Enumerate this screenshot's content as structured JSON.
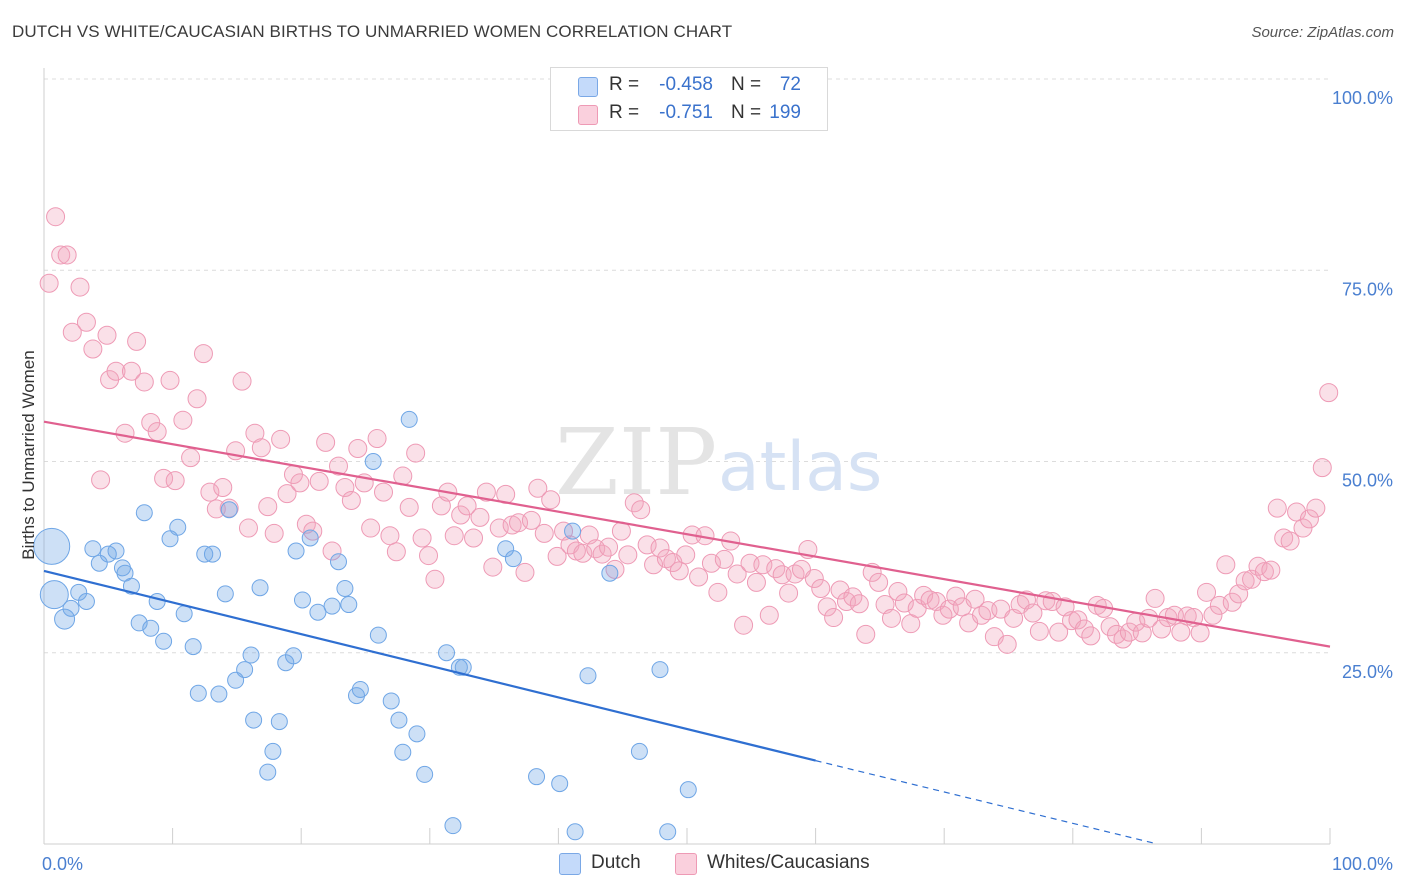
{
  "header": {
    "title": "DUTCH VS WHITE/CAUCASIAN BIRTHS TO UNMARRIED WOMEN CORRELATION CHART",
    "source": "Source: ZipAtlas.com"
  },
  "watermark": {
    "zip": "ZIP",
    "atlas": "atlas"
  },
  "legend": {
    "r_label": "R =",
    "n_label": "N =",
    "rows": [
      {
        "r": "-0.458",
        "n": "72",
        "color": "#a9c8f0"
      },
      {
        "r": "-0.751",
        "n": "199",
        "color": "#f5bccd"
      }
    ]
  },
  "bottom_legend": {
    "dutch": "Dutch",
    "white": "Whites/Caucasians"
  },
  "chart_data": {
    "type": "scatter",
    "title": "DUTCH VS WHITE/CAUCASIAN BIRTHS TO UNMARRIED WOMEN CORRELATION CHART",
    "ylabel": "Births to Unmarried Women",
    "xlabel": "",
    "x_tick_labels": [
      "0.0%",
      "100.0%"
    ],
    "y_tick_labels": [
      "100.0%",
      "75.0%",
      "50.0%",
      "25.0%"
    ],
    "xlim": [
      0,
      100
    ],
    "ylim": [
      0,
      100
    ],
    "grid": true,
    "legend_position": "top-center",
    "series": [
      {
        "name": "Dutch",
        "color": "#6fa6e6",
        "trend": {
          "x": [
            0,
            60
          ],
          "y": [
            35.7,
            10.9
          ],
          "dashed_to": [
            100,
            -5.5
          ],
          "color": "#2f6fd1"
        },
        "points": [
          [
            0.6,
            38.9,
            18
          ],
          [
            0.8,
            32.6,
            14
          ],
          [
            1.6,
            29.4,
            10
          ],
          [
            2.1,
            30.8,
            8
          ],
          [
            2.7,
            32.9,
            8
          ],
          [
            3.3,
            31.7,
            8
          ],
          [
            3.8,
            38.6,
            8
          ],
          [
            4.3,
            36.7,
            8
          ],
          [
            5.0,
            37.9,
            8
          ],
          [
            5.6,
            38.3,
            8
          ],
          [
            6.1,
            36.1,
            8
          ],
          [
            6.3,
            35.4,
            8
          ],
          [
            6.8,
            33.7,
            8
          ],
          [
            7.4,
            28.9,
            8
          ],
          [
            7.8,
            43.3,
            8
          ],
          [
            8.3,
            28.2,
            8
          ],
          [
            8.8,
            31.7,
            8
          ],
          [
            9.3,
            26.5,
            8
          ],
          [
            9.8,
            39.9,
            8
          ],
          [
            10.4,
            41.4,
            8
          ],
          [
            10.9,
            30.1,
            8
          ],
          [
            11.6,
            25.8,
            8
          ],
          [
            12.0,
            19.7,
            8
          ],
          [
            12.5,
            37.9,
            8
          ],
          [
            13.1,
            37.9,
            8
          ],
          [
            13.6,
            19.6,
            8
          ],
          [
            14.1,
            32.7,
            8
          ],
          [
            14.4,
            43.7,
            8
          ],
          [
            14.9,
            21.4,
            8
          ],
          [
            15.6,
            22.8,
            8
          ],
          [
            16.1,
            24.7,
            8
          ],
          [
            16.3,
            16.2,
            8
          ],
          [
            16.8,
            33.5,
            8
          ],
          [
            17.4,
            9.4,
            8
          ],
          [
            17.8,
            12.1,
            8
          ],
          [
            18.3,
            16.0,
            8
          ],
          [
            18.8,
            23.7,
            8
          ],
          [
            19.4,
            24.6,
            8
          ],
          [
            19.6,
            38.3,
            8
          ],
          [
            20.1,
            31.9,
            8
          ],
          [
            20.7,
            40.0,
            8
          ],
          [
            21.3,
            30.3,
            8
          ],
          [
            22.4,
            31.1,
            8
          ],
          [
            22.9,
            36.9,
            8
          ],
          [
            23.4,
            33.4,
            8
          ],
          [
            23.7,
            31.3,
            8
          ],
          [
            24.3,
            19.4,
            8
          ],
          [
            24.6,
            20.2,
            8
          ],
          [
            25.6,
            50.0,
            8
          ],
          [
            26.0,
            27.3,
            8
          ],
          [
            27.0,
            18.7,
            8
          ],
          [
            27.6,
            16.2,
            8
          ],
          [
            27.9,
            12.0,
            8
          ],
          [
            28.4,
            55.5,
            8
          ],
          [
            29.0,
            14.4,
            8
          ],
          [
            29.6,
            9.1,
            8
          ],
          [
            31.3,
            25.0,
            8
          ],
          [
            31.8,
            2.4,
            8
          ],
          [
            32.3,
            23.1,
            8
          ],
          [
            32.6,
            23.1,
            8
          ],
          [
            35.9,
            38.6,
            8
          ],
          [
            36.5,
            37.3,
            8
          ],
          [
            38.3,
            8.8,
            8
          ],
          [
            40.1,
            7.9,
            8
          ],
          [
            41.3,
            1.6,
            8
          ],
          [
            42.3,
            22.0,
            8
          ],
          [
            41.1,
            40.9,
            8
          ],
          [
            44.0,
            35.4,
            8
          ],
          [
            46.3,
            12.1,
            8
          ],
          [
            48.5,
            1.6,
            8
          ],
          [
            50.1,
            7.1,
            8
          ],
          [
            47.9,
            22.8,
            8
          ]
        ]
      },
      {
        "name": "Whites/Caucasians",
        "color": "#f2a7be",
        "trend": {
          "x": [
            0,
            100
          ],
          "y": [
            55.2,
            25.8
          ],
          "color": "#e0608f"
        },
        "points": [
          [
            0.4,
            73.3
          ],
          [
            0.9,
            82.0
          ],
          [
            1.3,
            77.0
          ],
          [
            1.8,
            77.0
          ],
          [
            2.2,
            66.9
          ],
          [
            2.8,
            72.8
          ],
          [
            3.3,
            68.2
          ],
          [
            3.8,
            64.7
          ],
          [
            4.4,
            47.6
          ],
          [
            4.9,
            66.5
          ],
          [
            5.1,
            60.7
          ],
          [
            5.6,
            61.8
          ],
          [
            6.3,
            53.7
          ],
          [
            6.8,
            61.8
          ],
          [
            7.2,
            65.7
          ],
          [
            7.8,
            60.4
          ],
          [
            8.3,
            55.1
          ],
          [
            8.8,
            53.9
          ],
          [
            9.3,
            47.8
          ],
          [
            9.8,
            60.6
          ],
          [
            10.2,
            47.5
          ],
          [
            10.8,
            55.4
          ],
          [
            11.4,
            50.5
          ],
          [
            11.9,
            58.2
          ],
          [
            12.4,
            64.1
          ],
          [
            12.9,
            46.0
          ],
          [
            13.4,
            43.8
          ],
          [
            13.9,
            46.6
          ],
          [
            14.4,
            43.9
          ],
          [
            14.9,
            51.4
          ],
          [
            15.4,
            60.5
          ],
          [
            15.9,
            41.3
          ],
          [
            16.4,
            53.7
          ],
          [
            16.9,
            51.8
          ],
          [
            17.4,
            44.1
          ],
          [
            17.9,
            40.6
          ],
          [
            18.4,
            52.9
          ],
          [
            18.9,
            45.8
          ],
          [
            19.4,
            48.3
          ],
          [
            19.9,
            47.2
          ],
          [
            20.4,
            41.8
          ],
          [
            20.9,
            40.9
          ],
          [
            21.4,
            47.4
          ],
          [
            21.9,
            52.5
          ],
          [
            22.4,
            38.3
          ],
          [
            22.9,
            49.4
          ],
          [
            23.4,
            46.6
          ],
          [
            23.9,
            44.9
          ],
          [
            24.4,
            51.7
          ],
          [
            24.9,
            47.2
          ],
          [
            25.4,
            41.3
          ],
          [
            25.9,
            53.0
          ],
          [
            26.4,
            46.0
          ],
          [
            26.9,
            40.3
          ],
          [
            27.4,
            38.2
          ],
          [
            27.9,
            48.1
          ],
          [
            28.4,
            44.0
          ],
          [
            28.9,
            51.1
          ],
          [
            29.4,
            40.0
          ],
          [
            29.9,
            37.7
          ],
          [
            30.4,
            34.6
          ],
          [
            30.9,
            44.2
          ],
          [
            31.4,
            46.0
          ],
          [
            31.9,
            40.3
          ],
          [
            32.4,
            43.0
          ],
          [
            32.9,
            44.2
          ],
          [
            33.4,
            40.0
          ],
          [
            33.9,
            42.7
          ],
          [
            34.4,
            46.0
          ],
          [
            34.9,
            36.2
          ],
          [
            35.4,
            41.3
          ],
          [
            35.9,
            45.7
          ],
          [
            36.4,
            41.7
          ],
          [
            36.9,
            42.0
          ],
          [
            37.4,
            35.5
          ],
          [
            37.9,
            42.3
          ],
          [
            38.4,
            46.5
          ],
          [
            38.9,
            40.6
          ],
          [
            39.4,
            45.0
          ],
          [
            39.9,
            37.6
          ],
          [
            40.4,
            40.9
          ],
          [
            40.9,
            39.1
          ],
          [
            41.4,
            38.3
          ],
          [
            41.9,
            38.0
          ],
          [
            42.4,
            40.4
          ],
          [
            42.9,
            38.6
          ],
          [
            43.4,
            37.9
          ],
          [
            43.9,
            38.8
          ],
          [
            44.4,
            35.9
          ],
          [
            44.9,
            40.9
          ],
          [
            45.4,
            37.8
          ],
          [
            45.9,
            44.6
          ],
          [
            46.4,
            43.7
          ],
          [
            46.9,
            39.1
          ],
          [
            47.4,
            36.5
          ],
          [
            47.9,
            38.7
          ],
          [
            48.4,
            37.3
          ],
          [
            48.9,
            36.8
          ],
          [
            49.4,
            35.7
          ],
          [
            49.9,
            37.8
          ],
          [
            50.4,
            40.4
          ],
          [
            50.9,
            34.9
          ],
          [
            51.4,
            40.3
          ],
          [
            51.9,
            36.7
          ],
          [
            52.4,
            32.9
          ],
          [
            52.9,
            37.2
          ],
          [
            53.4,
            39.6
          ],
          [
            53.9,
            35.3
          ],
          [
            54.4,
            28.6
          ],
          [
            54.9,
            36.7
          ],
          [
            55.4,
            34.2
          ],
          [
            55.9,
            36.5
          ],
          [
            56.4,
            29.9
          ],
          [
            56.9,
            36.0
          ],
          [
            57.4,
            35.2
          ],
          [
            57.9,
            32.8
          ],
          [
            58.4,
            35.3
          ],
          [
            58.9,
            35.9
          ],
          [
            59.4,
            38.5
          ],
          [
            59.9,
            34.7
          ],
          [
            60.4,
            33.4
          ],
          [
            60.9,
            31.0
          ],
          [
            61.4,
            29.6
          ],
          [
            61.9,
            33.2
          ],
          [
            62.4,
            31.7
          ],
          [
            62.9,
            32.3
          ],
          [
            63.4,
            31.4
          ],
          [
            63.9,
            27.4
          ],
          [
            64.4,
            35.5
          ],
          [
            64.9,
            34.2
          ],
          [
            65.4,
            31.3
          ],
          [
            65.9,
            29.5
          ],
          [
            66.4,
            33.0
          ],
          [
            66.9,
            31.5
          ],
          [
            67.4,
            28.8
          ],
          [
            67.9,
            30.8
          ],
          [
            68.4,
            32.5
          ],
          [
            68.9,
            31.9
          ],
          [
            69.4,
            31.7
          ],
          [
            69.9,
            29.9
          ],
          [
            70.4,
            30.7
          ],
          [
            70.9,
            32.4
          ],
          [
            71.4,
            31.0
          ],
          [
            71.9,
            28.9
          ],
          [
            72.4,
            32.0
          ],
          [
            72.9,
            29.9
          ],
          [
            73.4,
            30.5
          ],
          [
            73.9,
            27.1
          ],
          [
            74.4,
            30.7
          ],
          [
            74.9,
            26.1
          ],
          [
            75.4,
            29.5
          ],
          [
            75.9,
            31.3
          ],
          [
            76.4,
            31.9
          ],
          [
            76.9,
            30.2
          ],
          [
            77.4,
            27.8
          ],
          [
            77.9,
            31.8
          ],
          [
            78.4,
            31.7
          ],
          [
            78.9,
            27.7
          ],
          [
            79.4,
            31.0
          ],
          [
            79.9,
            29.2
          ],
          [
            80.4,
            29.3
          ],
          [
            80.9,
            28.1
          ],
          [
            81.4,
            27.2
          ],
          [
            81.9,
            31.2
          ],
          [
            82.4,
            30.8
          ],
          [
            82.9,
            28.4
          ],
          [
            83.4,
            27.4
          ],
          [
            83.9,
            26.8
          ],
          [
            84.4,
            27.7
          ],
          [
            84.9,
            29.0
          ],
          [
            85.4,
            27.6
          ],
          [
            85.9,
            29.5
          ],
          [
            86.4,
            32.1
          ],
          [
            86.9,
            28.1
          ],
          [
            87.4,
            29.6
          ],
          [
            87.9,
            29.9
          ],
          [
            88.4,
            27.7
          ],
          [
            88.9,
            29.8
          ],
          [
            89.4,
            29.6
          ],
          [
            89.9,
            27.6
          ],
          [
            90.4,
            32.9
          ],
          [
            90.9,
            29.9
          ],
          [
            91.4,
            31.2
          ],
          [
            91.9,
            36.5
          ],
          [
            92.4,
            31.6
          ],
          [
            92.9,
            32.7
          ],
          [
            93.4,
            34.4
          ],
          [
            93.9,
            34.6
          ],
          [
            94.4,
            36.3
          ],
          [
            94.9,
            35.6
          ],
          [
            95.4,
            35.8
          ],
          [
            95.9,
            43.9
          ],
          [
            96.4,
            40.0
          ],
          [
            96.9,
            39.6
          ],
          [
            97.4,
            43.4
          ],
          [
            97.9,
            41.3
          ],
          [
            98.4,
            42.5
          ],
          [
            98.9,
            43.9
          ],
          [
            99.4,
            49.2
          ],
          [
            99.9,
            59.0
          ]
        ]
      }
    ]
  }
}
